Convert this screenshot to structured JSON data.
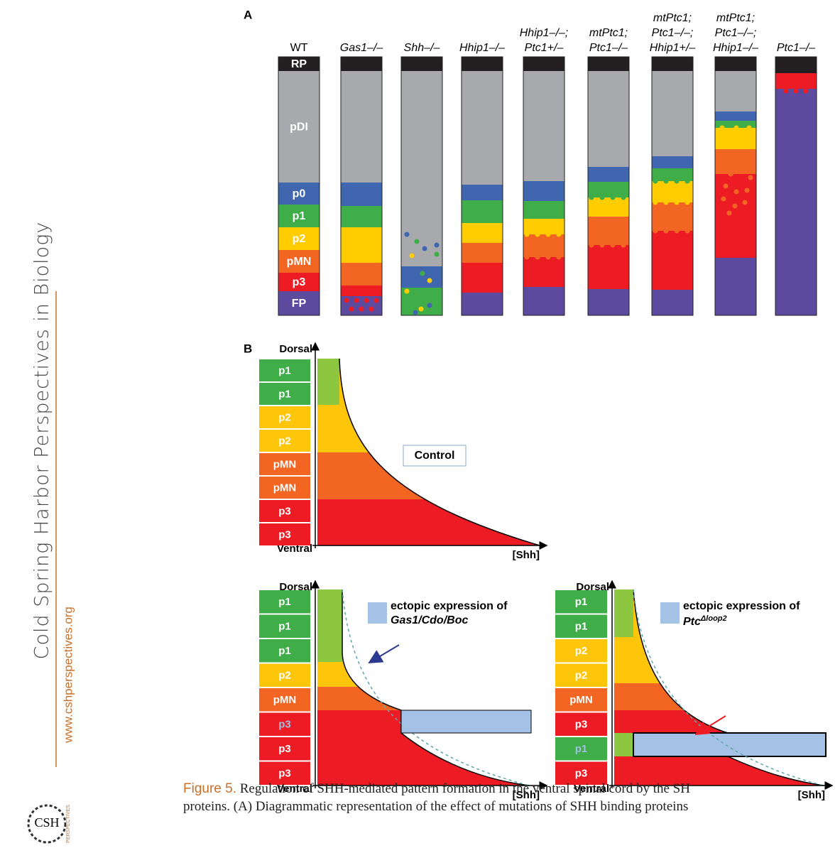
{
  "sidebar": {
    "journal": "Cold Spring Harbor Perspectives in Biology",
    "url": "www.cshperspectives.org",
    "logo": "CSH",
    "logo_sub": "PERSPECTIVES"
  },
  "panel_a": {
    "label": "A",
    "columns": [
      {
        "header": [
          "WT"
        ],
        "zones": [
          "RP",
          "pDI",
          "p0",
          "p1",
          "p2",
          "pMN",
          "p3",
          "FP"
        ]
      },
      {
        "header": [
          "Gas1–/–"
        ]
      },
      {
        "header": [
          "Shh–/–"
        ]
      },
      {
        "header": [
          "Hhip1–/–"
        ]
      },
      {
        "header": [
          "Hhip1–/–;",
          "Ptc1+/–"
        ]
      },
      {
        "header": [
          "mtPtc1;",
          "Ptc1–/–"
        ]
      },
      {
        "header": [
          "mtPtc1;",
          "Ptc1–/–;",
          "Hhip1+/–"
        ]
      },
      {
        "header": [
          "mtPtc1;",
          "Ptc1–/–;",
          "Hhip1–/–"
        ]
      },
      {
        "header": [
          "Ptc1–/–"
        ]
      }
    ]
  },
  "panel_b": {
    "label": "B",
    "control": {
      "dorsal": "Dorsal",
      "ventral": "Ventral",
      "x_axis": "[Shh]",
      "zones": [
        "p1",
        "p1",
        "p2",
        "p2",
        "pMN",
        "pMN",
        "p3",
        "p3"
      ],
      "legend": "Control"
    },
    "gas1": {
      "dorsal": "Dorsal",
      "ventral": "Ventral",
      "x_axis": "[Shh]",
      "zones": [
        "p1",
        "p1",
        "p1",
        "p2",
        "pMN",
        "p3",
        "p3",
        "p3"
      ],
      "legend": [
        "ectopic expression of",
        "Gas1/Cdo/Boc"
      ]
    },
    "ptc": {
      "dorsal": "Dorsal",
      "ventral": "Ventral",
      "x_axis": "[Shh]",
      "zones": [
        "p1",
        "p1",
        "p2",
        "p2",
        "pMN",
        "p3",
        "p1",
        "p3"
      ],
      "legend": "ectopic expression of",
      "legend_ptc": "Ptc",
      "legend_sup": "Δloop2"
    }
  },
  "caption": {
    "figure": "Figure 5.",
    "lines": [
      "Regulation of SHH-mediated pattern formation in the ventral spinal cord by the SH",
      "proteins. (A) Diagrammatic representation of the effect of mutations of SHH binding proteins"
    ]
  }
}
